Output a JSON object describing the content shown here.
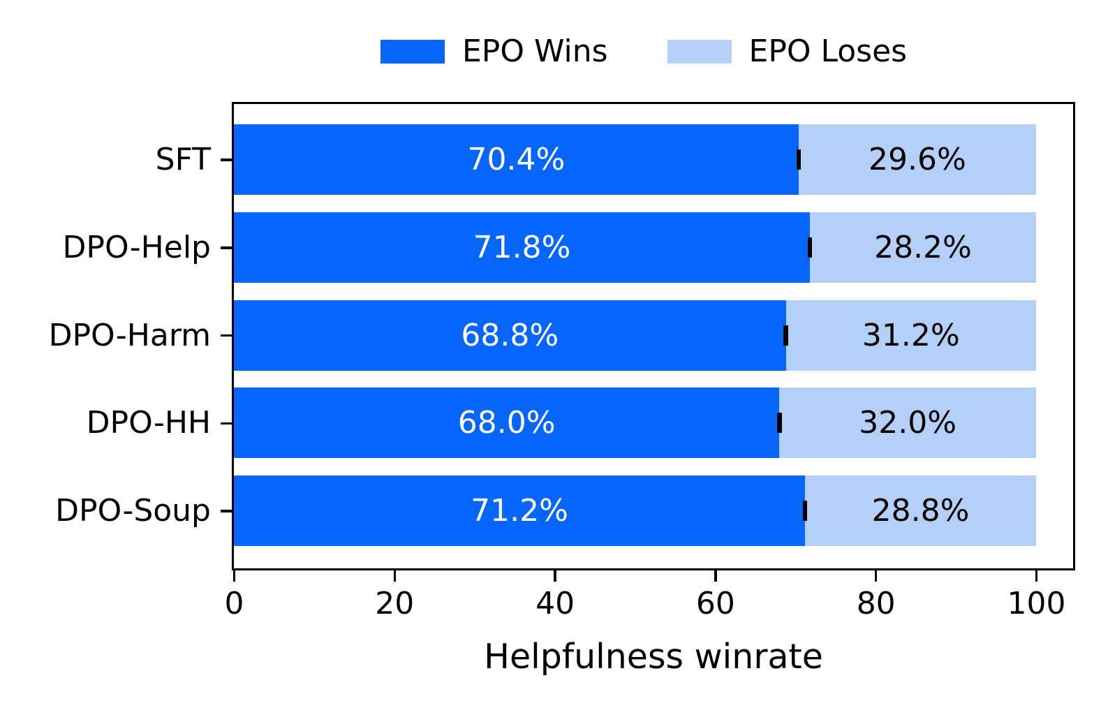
{
  "chart_data": {
    "type": "bar",
    "orientation": "horizontal",
    "stacked": true,
    "title": "",
    "xlabel": "Helpfulness winrate",
    "ylabel": "",
    "categories": [
      "SFT",
      "DPO-Help",
      "DPO-Harm",
      "DPO-HH",
      "DPO-Soup"
    ],
    "series": [
      {
        "name": "EPO Wins",
        "color": "#0666fc",
        "label_color": "#ffffff",
        "values": [
          70.4,
          71.8,
          68.8,
          68.0,
          71.2
        ],
        "labels": [
          "70.4%",
          "71.8%",
          "68.8%",
          "68.0%",
          "71.2%"
        ]
      },
      {
        "name": "EPO Loses",
        "color": "#b5d0f8",
        "label_color": "#000000",
        "values": [
          29.6,
          28.2,
          31.2,
          32.0,
          28.8
        ],
        "labels": [
          "29.6%",
          "28.2%",
          "31.2%",
          "32.0%",
          "28.8%"
        ]
      }
    ],
    "x_ticks": [
      0,
      20,
      40,
      60,
      80,
      100
    ],
    "x_tick_labels": [
      "0",
      "20",
      "40",
      "60",
      "80",
      "100"
    ],
    "xlim": [
      0,
      104.6
    ],
    "grid": false,
    "legend_position": "top",
    "error_bar_color": "#000000",
    "axis_color": "#000000"
  }
}
